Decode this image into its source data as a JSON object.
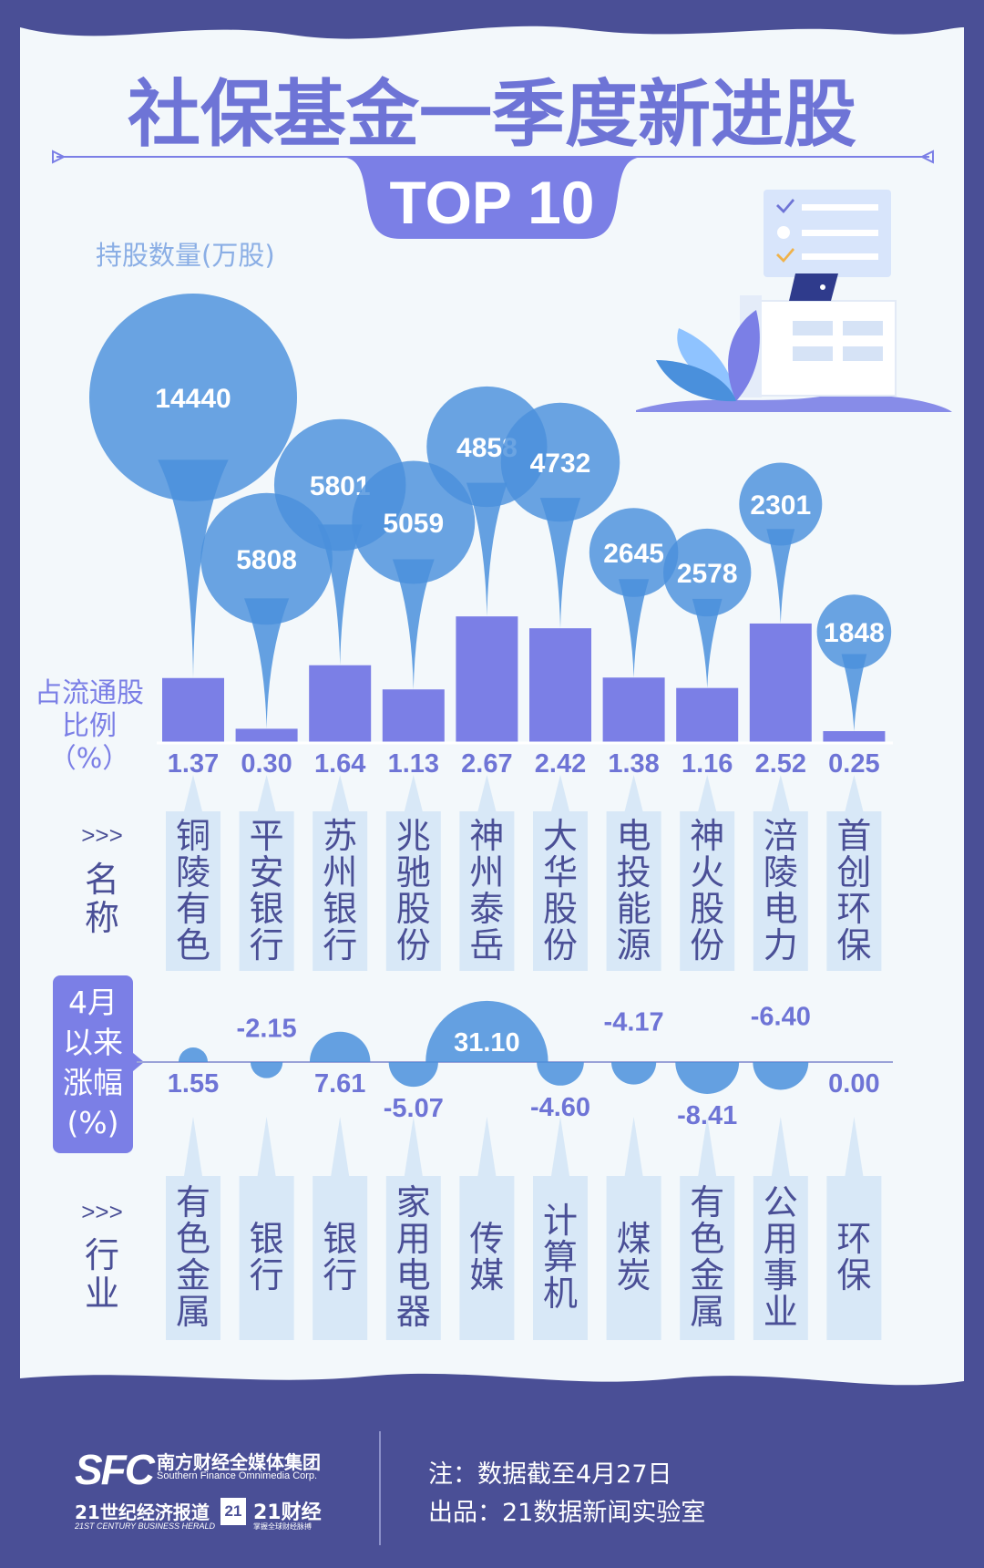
{
  "title": "社保基金一季度新进股",
  "subtitle": "TOP 10",
  "colors": {
    "background": "#4a4f96",
    "panel": "#f3f8fb",
    "accent": "#7b7fe6",
    "bubble": "#4a90dc",
    "light_box": "#d8e8f7",
    "value_text": "#6e74d6",
    "label_text": "#8aaee5"
  },
  "chart_data": {
    "type": "bar",
    "categories": [
      "铜陵有色",
      "平安银行",
      "苏州银行",
      "兆驰股份",
      "神州泰岳",
      "大华股份",
      "电投能源",
      "神火股份",
      "涪陵电力",
      "首创环保"
    ],
    "holdings_label": "持股数量(万股)",
    "holdings": [
      14440,
      5808,
      5801,
      5059,
      4858,
      4732,
      2645,
      2578,
      2301,
      1848
    ],
    "ratio_label": [
      "占流通股",
      "比例",
      "（%）"
    ],
    "ratio": [
      "1.37",
      "0.30",
      "1.64",
      "1.13",
      "2.67",
      "2.42",
      "1.38",
      "1.16",
      "2.52",
      "0.25"
    ],
    "name_label": {
      "arrows": ">>>",
      "text": [
        "名",
        "称"
      ]
    },
    "change_label": [
      "4月",
      "以来",
      "涨幅",
      "(%)"
    ],
    "change": [
      "1.55",
      "-2.15",
      "7.61",
      "-5.07",
      "31.10",
      "-4.60",
      "-4.17",
      "-8.41",
      "-6.40",
      "0.00"
    ],
    "industry_label": {
      "arrows": ">>>",
      "text": [
        "行",
        "业"
      ]
    },
    "industries": [
      "有色金属",
      "银行",
      "银行",
      "家用电器",
      "传媒",
      "计算机",
      "煤炭",
      "有色金属",
      "公用事业",
      "环保"
    ]
  },
  "footer": {
    "logo_sfc": "SFC",
    "logo_cn": "南方财经全媒体集团",
    "logo_en": "Southern Finance Omnimedia Corp.",
    "herald_cn": "21世纪经济报道",
    "herald_en": "21ST CENTURY BUSINESS HERALD",
    "cj_box": "21",
    "cj_name": "21财经",
    "cj_sub": "掌握全球财经脉搏",
    "note": "注：数据截至4月27日",
    "credit": "出品：21数据新闻实验室"
  }
}
